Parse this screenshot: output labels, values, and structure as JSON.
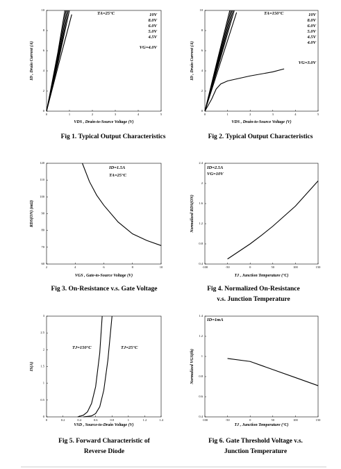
{
  "chart_data": [
    {
      "type": "line",
      "caption": [
        "Fig 1. Typical Output Characteristics"
      ],
      "x_label": "VDS , Drain-to-Source Voltage (V)",
      "y_label": "ID , Drain Current (A)",
      "annotations": [
        "TA=25°C"
      ],
      "xlim": [
        0,
        5
      ],
      "xticks": [
        0,
        1,
        2,
        3,
        4,
        5
      ],
      "ylim": [
        0,
        10
      ],
      "yticks": [
        0,
        2,
        4,
        6,
        8,
        10
      ],
      "series": [
        {
          "name": "10V",
          "color": "#000000",
          "x": [
            0,
            0.5,
            0.8
          ],
          "values": [
            0,
            5.9,
            10
          ]
        },
        {
          "name": "8.0V",
          "color": "#000000",
          "x": [
            0,
            0.5,
            0.85
          ],
          "values": [
            0,
            5.6,
            10
          ]
        },
        {
          "name": "6.0V",
          "color": "#000000",
          "x": [
            0,
            0.5,
            0.9
          ],
          "values": [
            0,
            5.3,
            10
          ]
        },
        {
          "name": "5.0V",
          "color": "#000000",
          "x": [
            0,
            0.5,
            0.95
          ],
          "values": [
            0,
            5.0,
            10
          ]
        },
        {
          "name": "4.5V",
          "color": "#000000",
          "x": [
            0,
            0.5,
            1.0
          ],
          "values": [
            0,
            4.8,
            10
          ]
        },
        {
          "name": "VG=4.0V",
          "color": "#000000",
          "x": [
            0,
            0.5,
            1.1
          ],
          "values": [
            0,
            4.4,
            9.6
          ]
        }
      ]
    },
    {
      "type": "line",
      "caption": [
        "Fig 2. Typical Output Characteristics"
      ],
      "x_label": "VDS , Drain-to-Source Voltage (V)",
      "y_label": "ID , Drain Current (A)",
      "annotations": [
        "TA=150°C"
      ],
      "xlim": [
        0,
        5
      ],
      "xticks": [
        0,
        1,
        2,
        3,
        4,
        5
      ],
      "ylim": [
        0,
        10
      ],
      "yticks": [
        0,
        2,
        4,
        6,
        8,
        10
      ],
      "series": [
        {
          "name": "10V",
          "color": "#000000",
          "x": [
            0,
            0.5,
            1.1
          ],
          "values": [
            0,
            4.6,
            10
          ]
        },
        {
          "name": "8.0V",
          "color": "#000000",
          "x": [
            0,
            0.5,
            1.15
          ],
          "values": [
            0,
            4.4,
            10
          ]
        },
        {
          "name": "6.0V",
          "color": "#000000",
          "x": [
            0,
            0.5,
            1.2
          ],
          "values": [
            0,
            4.2,
            10
          ]
        },
        {
          "name": "5.0V",
          "color": "#000000",
          "x": [
            0,
            0.5,
            1.25
          ],
          "values": [
            0,
            4.0,
            10
          ]
        },
        {
          "name": "4.5V",
          "color": "#000000",
          "x": [
            0,
            0.5,
            1.3
          ],
          "values": [
            0,
            3.8,
            10
          ]
        },
        {
          "name": "4.0V",
          "color": "#000000",
          "x": [
            0,
            0.5,
            1.4
          ],
          "values": [
            0,
            3.5,
            9.8
          ]
        },
        {
          "name": "VG=3.0V",
          "color": "#000000",
          "x": [
            0,
            0.3,
            0.5,
            0.7,
            1,
            2,
            3,
            3.5
          ],
          "values": [
            0,
            1.2,
            2.2,
            2.7,
            3.0,
            3.5,
            3.9,
            4.2
          ]
        }
      ]
    },
    {
      "type": "line",
      "caption": [
        "Fig 3. On-Resistance  v.s. Gate Voltage"
      ],
      "x_label": "VGS , Gate-to-Source Voltage (V)",
      "y_label": "RDS(ON) (mΩ)",
      "annotations": [
        "ID=1.5A",
        "TA=25°C"
      ],
      "xlim": [
        2,
        10
      ],
      "xticks": [
        2,
        4,
        6,
        8,
        10
      ],
      "ylim": [
        60,
        120
      ],
      "yticks": [
        60,
        70,
        80,
        90,
        100,
        110,
        120
      ],
      "series": [
        {
          "color": "#000000",
          "x": [
            4.5,
            5,
            5.5,
            6,
            7,
            8,
            9,
            10
          ],
          "values": [
            120,
            109,
            101,
            95,
            85,
            78,
            74,
            71
          ]
        }
      ]
    },
    {
      "type": "line",
      "caption": [
        "Fig 4. Normalized On-Resistance",
        "v.s. Junction Temperature"
      ],
      "x_label": "TJ , Junction Temperature (°C)",
      "y_label": "Normalized RDS(ON)",
      "annotations": [
        "ID=2.5A",
        "VG=10V"
      ],
      "xlim": [
        -100,
        150
      ],
      "xticks": [
        -100,
        -50,
        0,
        50,
        100,
        150
      ],
      "ylim": [
        0.4,
        2.4
      ],
      "yticks": [
        0.4,
        0.8,
        1.2,
        1.6,
        2.0,
        2.4
      ],
      "series": [
        {
          "color": "#000000",
          "x": [
            -50,
            0,
            25,
            50,
            100,
            150
          ],
          "values": [
            0.5,
            0.8,
            0.97,
            1.15,
            1.55,
            2.05
          ]
        }
      ]
    },
    {
      "type": "line",
      "caption": [
        "Fig 5. Forward Characteristic of",
        "Reverse Diode"
      ],
      "x_label": "VSD , Source-to-Drain Voltage (V)",
      "y_label": "IS(A)",
      "annotations": [],
      "xlim": [
        0,
        1.4
      ],
      "xticks": [
        0,
        0.2,
        0.4,
        0.6,
        0.8,
        1,
        1.2,
        1.4
      ],
      "ylim": [
        0,
        3
      ],
      "yticks": [
        0,
        0.5,
        1,
        1.5,
        2,
        2.5,
        3
      ],
      "series": [
        {
          "name": "TJ=150°C",
          "color": "#000000",
          "x": [
            0.38,
            0.45,
            0.5,
            0.55,
            0.6,
            0.65,
            0.68
          ],
          "values": [
            0,
            0.05,
            0.15,
            0.4,
            0.9,
            1.9,
            3
          ]
        },
        {
          "name": "TJ=25°C",
          "color": "#000000",
          "x": [
            0.45,
            0.55,
            0.6,
            0.65,
            0.7,
            0.75,
            0.8
          ],
          "values": [
            0,
            0.03,
            0.1,
            0.3,
            0.8,
            1.7,
            3
          ]
        }
      ]
    },
    {
      "type": "line",
      "caption": [
        "Fig 6. Gate Threshold Voltage v.s.",
        "Junction Temperature"
      ],
      "x_label": "TJ , Junction Temperature (°C)",
      "y_label": "Normalized VGS(th)",
      "annotations": [
        "ID=1mA"
      ],
      "xlim": [
        -100,
        150
      ],
      "xticks": [
        -100,
        -50,
        0,
        50,
        100,
        150
      ],
      "ylim": [
        0.4,
        1.4
      ],
      "yticks": [
        0.4,
        0.6,
        0.8,
        1.0,
        1.2,
        1.4
      ],
      "series": [
        {
          "color": "#000000",
          "x": [
            -50,
            0,
            25,
            50,
            100,
            150
          ],
          "values": [
            0.98,
            0.95,
            0.91,
            0.87,
            0.79,
            0.71
          ]
        }
      ]
    }
  ]
}
